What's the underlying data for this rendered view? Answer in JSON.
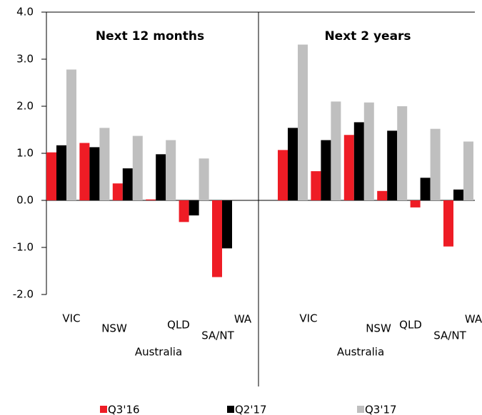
{
  "chart_data": {
    "type": "bar",
    "ylim": [
      -2,
      4
    ],
    "yticks": [
      {
        "value": 4,
        "label": "4.0"
      },
      {
        "value": 3,
        "label": "3.0"
      },
      {
        "value": 2,
        "label": "2.0"
      },
      {
        "value": 1,
        "label": "1.0"
      },
      {
        "value": 0,
        "label": "0.0"
      },
      {
        "value": -1,
        "label": "-1.0"
      },
      {
        "value": -2,
        "label": "-2.0"
      }
    ],
    "categories": [
      "VIC",
      "NSW",
      "Australia",
      "QLD",
      "SA/NT",
      "WA"
    ],
    "legend": [
      {
        "name": "Q3'16",
        "color": "#ee1c25"
      },
      {
        "name": "Q2'17",
        "color": "#000000"
      },
      {
        "name": "Q3'17",
        "color": "#bfbfbf"
      }
    ],
    "panels": [
      {
        "title": "Next 12 months",
        "series": [
          {
            "values": [
              1.02,
              1.22,
              0.36,
              0.02,
              -0.46,
              -1.63
            ]
          },
          {
            "values": [
              1.17,
              1.13,
              0.68,
              0.98,
              -0.32,
              -1.02
            ]
          },
          {
            "values": [
              2.78,
              1.54,
              1.37,
              1.28,
              0.89,
              null
            ]
          }
        ]
      },
      {
        "title": "Next 2 years",
        "series": [
          {
            "values": [
              1.07,
              0.62,
              1.39,
              0.2,
              -0.15,
              -0.98
            ]
          },
          {
            "values": [
              1.54,
              1.28,
              1.66,
              1.48,
              0.48,
              0.23
            ]
          },
          {
            "values": [
              3.31,
              2.1,
              2.08,
              2.0,
              1.52,
              1.25
            ]
          }
        ]
      }
    ]
  }
}
